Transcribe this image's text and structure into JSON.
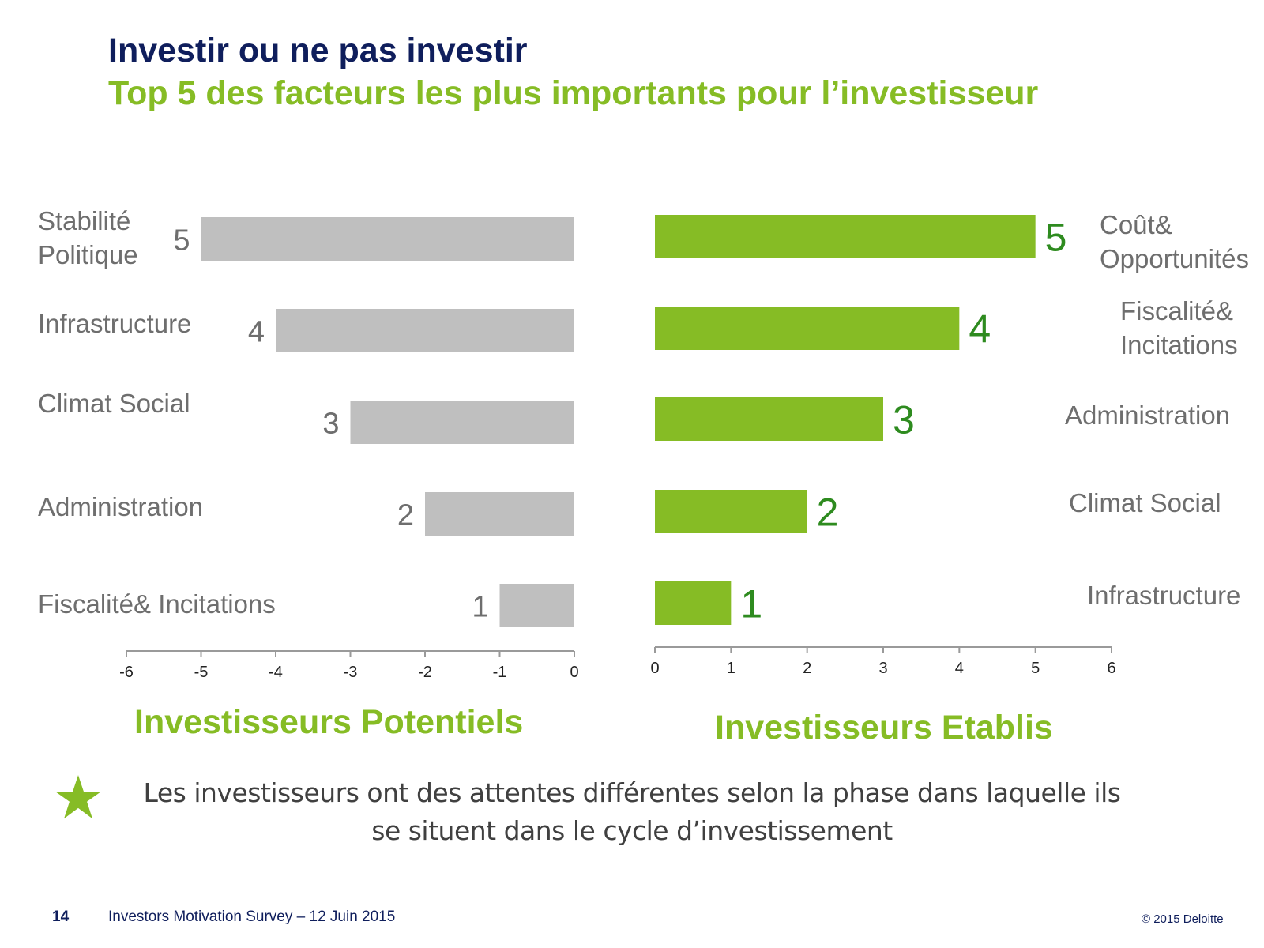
{
  "header": {
    "title": "Investir ou ne pas investir",
    "subtitle": "Top 5 des facteurs les plus importants pour l’investisseur"
  },
  "colors": {
    "navy": "#0f1e5c",
    "green": "#86bc25",
    "dark_green": "#2e8b1f",
    "gray_bar": "#bfbfbf",
    "label_gray": "#6e6e6e"
  },
  "chart_data": [
    {
      "type": "bar",
      "orientation": "horizontal",
      "title": "Investisseurs Potentiels",
      "categories": [
        "Stabilité Politique",
        "Infrastructure",
        "Climat Social",
        "Administration",
        "Fiscalité& Incitations"
      ],
      "category_lines": [
        [
          "Stabilité",
          "Politique"
        ],
        [
          "Infrastructure"
        ],
        [
          "Climat Social"
        ],
        [
          "Administration"
        ],
        [
          "Fiscalité& Incitations"
        ]
      ],
      "values": [
        -5,
        -4,
        -3,
        -2,
        -1
      ],
      "data_labels": [
        "5",
        "4",
        "3",
        "2",
        "1"
      ],
      "xlim": [
        -6,
        0
      ],
      "ticks": [
        -6,
        -5,
        -4,
        -3,
        -2,
        -1,
        0
      ],
      "tick_labels": [
        "-6",
        "-5",
        "-4",
        "-3",
        "-2",
        "-1",
        "0"
      ],
      "bar_color": "#bfbfbf",
      "grid": false
    },
    {
      "type": "bar",
      "orientation": "horizontal",
      "title": "Investisseurs Etablis",
      "categories": [
        "Coût& Opportunités",
        "Fiscalité& Incitations",
        "Administration",
        "Climat Social",
        "Infrastructure"
      ],
      "category_lines": [
        [
          "Coût&",
          "Opportunités"
        ],
        [
          "Fiscalité&",
          "Incitations"
        ],
        [
          "Administration"
        ],
        [
          "Climat Social"
        ],
        [
          "Infrastructure"
        ]
      ],
      "values": [
        5,
        4,
        3,
        2,
        1
      ],
      "data_labels": [
        "5",
        "4",
        "3",
        "2",
        "1"
      ],
      "xlim": [
        0,
        6
      ],
      "ticks": [
        0,
        1,
        2,
        3,
        4,
        5,
        6
      ],
      "tick_labels": [
        "0",
        "1",
        "2",
        "3",
        "4",
        "5",
        "6"
      ],
      "bar_color": "#86bc25",
      "grid": false
    }
  ],
  "note": "Les investisseurs ont des attentes différentes selon la phase dans laquelle ils se situent dans le cycle d’investissement",
  "star_icon": "star-icon",
  "footer": {
    "page_number": "14",
    "survey": "Investors Motivation Survey – 12 Juin 2015",
    "copyright": "© 2015 Deloitte"
  }
}
